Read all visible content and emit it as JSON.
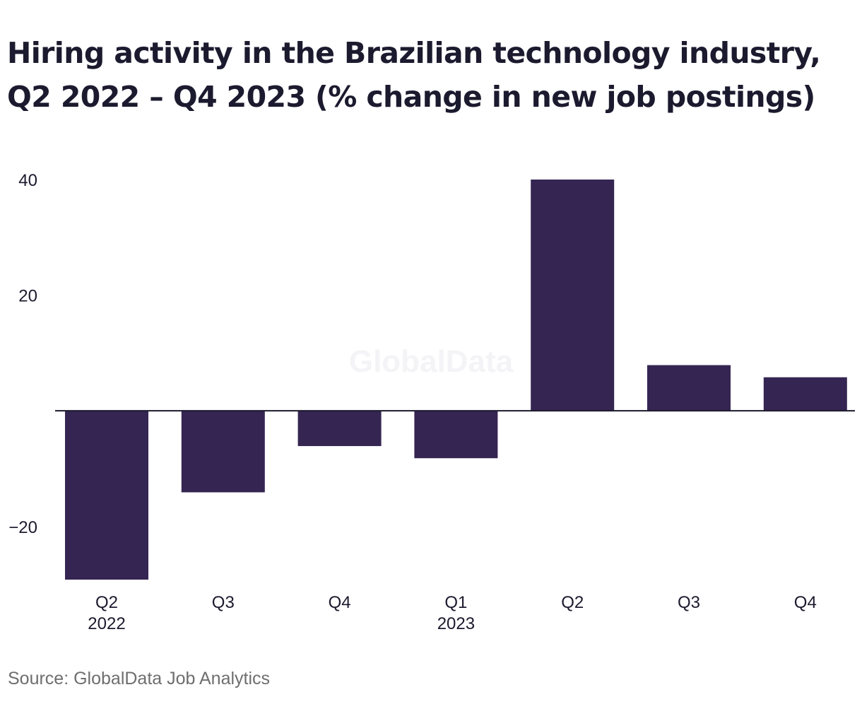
{
  "chart_data": {
    "type": "bar",
    "title": "Hiring activity in the Brazilian technology industry, Q2 2022 – Q4 2023 (% change in new job postings)",
    "categories": [
      {
        "quarter": "Q2",
        "year": "2022"
      },
      {
        "quarter": "Q3",
        "year": ""
      },
      {
        "quarter": "Q4",
        "year": ""
      },
      {
        "quarter": "Q1",
        "year": "2023"
      },
      {
        "quarter": "Q2",
        "year": ""
      },
      {
        "quarter": "Q3",
        "year": ""
      },
      {
        "quarter": "Q4",
        "year": ""
      }
    ],
    "values": [
      -29.2,
      -14.1,
      -6.1,
      -8.2,
      40.0,
      7.9,
      5.8
    ],
    "xlabel": "",
    "ylabel": "",
    "ylim": [
      -29.2,
      40
    ],
    "yticks": [
      {
        "value": 40,
        "label": "40"
      },
      {
        "value": 20,
        "label": "20"
      },
      {
        "value": -20,
        "label": "−20"
      }
    ],
    "bar_color": "#352552",
    "grid": false,
    "source": "Source: GlobalData Job Analytics",
    "watermark": "GlobalData"
  }
}
